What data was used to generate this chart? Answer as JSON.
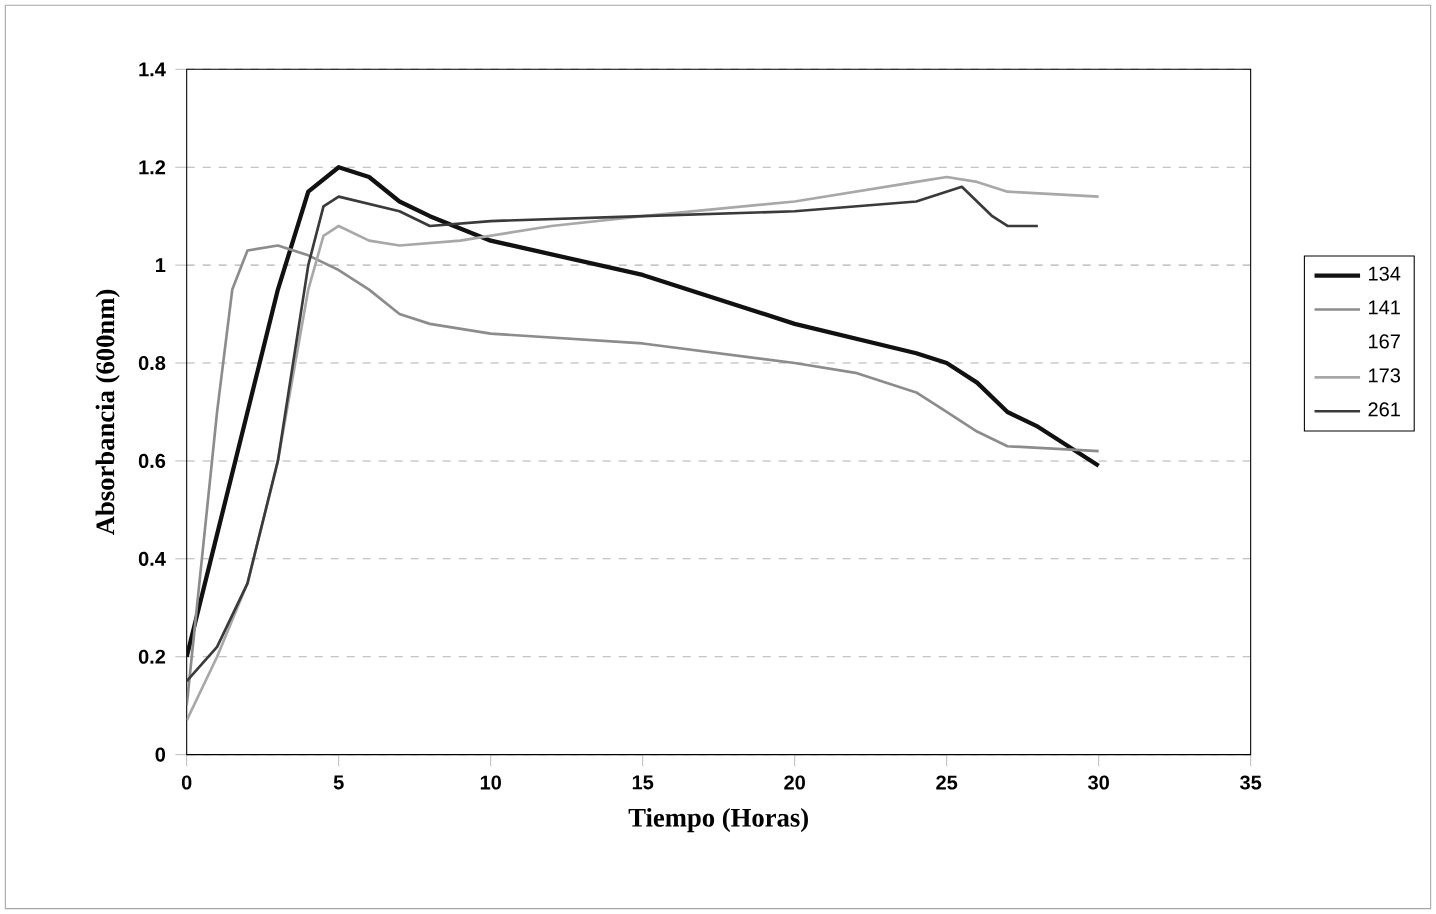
{
  "chart_data": {
    "type": "line",
    "xlabel": "Tiempo (Horas)",
    "ylabel": "Absorbancia (600nm)",
    "xlim": [
      0,
      35
    ],
    "xticks": [
      0,
      5,
      10,
      15,
      20,
      25,
      30,
      35
    ],
    "ylim": [
      0,
      1.4
    ],
    "yticks": [
      0,
      0.2,
      0.4,
      0.6,
      0.8,
      1,
      1.2,
      1.4
    ],
    "grid": "y",
    "legend": "right",
    "marker": "none",
    "line_style": "solid",
    "series": [
      {
        "name": "134",
        "color": "#111111",
        "x": [
          0,
          1,
          2,
          3,
          4,
          5,
          6,
          7,
          8,
          10,
          15,
          20,
          24,
          25,
          26,
          27,
          28,
          30
        ],
        "values": [
          0.2,
          0.45,
          0.7,
          0.95,
          1.15,
          1.2,
          1.18,
          1.13,
          1.1,
          1.05,
          0.98,
          0.88,
          0.82,
          0.8,
          0.76,
          0.7,
          0.67,
          0.59
        ]
      },
      {
        "name": "141",
        "color": "#8c8c8c",
        "x": [
          0,
          0.5,
          1,
          1.5,
          2,
          3,
          4,
          5,
          6,
          7,
          8,
          10,
          15,
          20,
          22,
          24,
          25,
          26,
          27,
          30
        ],
        "values": [
          0.1,
          0.4,
          0.7,
          0.95,
          1.03,
          1.04,
          1.02,
          0.99,
          0.95,
          0.9,
          0.88,
          0.86,
          0.84,
          0.8,
          0.78,
          0.74,
          0.7,
          0.66,
          0.63,
          0.62
        ]
      },
      {
        "name": "167",
        "values": [
          null,
          null
        ]
      },
      {
        "name": "173",
        "color": "#a8a8a8",
        "x": [
          0,
          1,
          2,
          3,
          4,
          4.5,
          5,
          6,
          7,
          9,
          12,
          15,
          20,
          24,
          25,
          26,
          27,
          30
        ],
        "values": [
          0.07,
          0.2,
          0.35,
          0.6,
          0.95,
          1.06,
          1.08,
          1.05,
          1.04,
          1.05,
          1.08,
          1.1,
          1.13,
          1.17,
          1.18,
          1.17,
          1.15,
          1.14
        ]
      },
      {
        "name": "261",
        "color": "#3a3a3a",
        "x": [
          0,
          1,
          2,
          3,
          4,
          4.5,
          5,
          7,
          8,
          10,
          15,
          20,
          24,
          25.5,
          26.5,
          27,
          28
        ],
        "values": [
          0.15,
          0.22,
          0.35,
          0.6,
          1.0,
          1.12,
          1.14,
          1.11,
          1.08,
          1.09,
          1.1,
          1.11,
          1.13,
          1.16,
          1.1,
          1.08,
          1.08
        ]
      }
    ]
  }
}
